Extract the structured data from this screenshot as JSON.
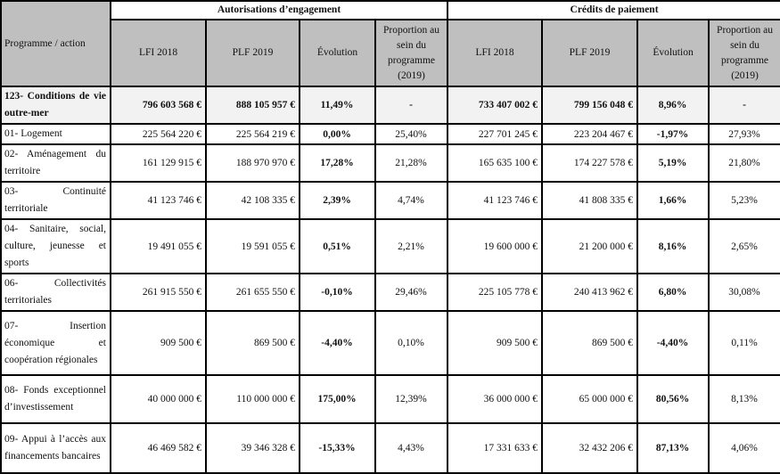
{
  "header": {
    "programme_label": "Programme / action",
    "group_ae": "Autorisations d’engagement",
    "group_cp": "Crédits de paiement",
    "cols": [
      "LFI 2018",
      "PLF 2019",
      "Évolution",
      "Proportion au sein du programme (2019)"
    ]
  },
  "rows": [
    {
      "name": "123- Conditions de vie outre-mer",
      "ae_lfi": "796 603 568 €",
      "ae_plf": "888 105 957 €",
      "ae_ev": "11,49%",
      "ae_pr": "-",
      "cp_lfi": "733 407 002 €",
      "cp_plf": "799 156 048 €",
      "cp_ev": "8,96%",
      "cp_pr": "-"
    },
    {
      "name": "01- Logement",
      "ae_lfi": "225 564 220 €",
      "ae_plf": "225 564 219 €",
      "ae_ev": "0,00%",
      "ae_pr": "25,40%",
      "cp_lfi": "227 701 245 €",
      "cp_plf": "223 204 467 €",
      "cp_ev": "-1,97%",
      "cp_pr": "27,93%"
    },
    {
      "name": "02- Aménagement du territoire",
      "ae_lfi": "161 129 915 €",
      "ae_plf": "188 970 970 €",
      "ae_ev": "17,28%",
      "ae_pr": "21,28%",
      "cp_lfi": "165 635 100 €",
      "cp_plf": "174 227 578 €",
      "cp_ev": "5,19%",
      "cp_pr": "21,80%"
    },
    {
      "name": "03- Continuité territoriale",
      "ae_lfi": "41 123 746 €",
      "ae_plf": "42 108 335 €",
      "ae_ev": "2,39%",
      "ae_pr": "4,74%",
      "cp_lfi": "41 123 746 €",
      "cp_plf": "41 808 335 €",
      "cp_ev": "1,66%",
      "cp_pr": "5,23%"
    },
    {
      "name": "04- Sanitaire, social, culture, jeunesse et sports",
      "ae_lfi": "19 491 055 €",
      "ae_plf": "19 591 055 €",
      "ae_ev": "0,51%",
      "ae_pr": "2,21%",
      "cp_lfi": "19 600 000 €",
      "cp_plf": "21 200 000 €",
      "cp_ev": "8,16%",
      "cp_pr": "2,65%"
    },
    {
      "name": "06- Collectivités territoriales",
      "ae_lfi": "261 915 550 €",
      "ae_plf": "261 655 550 €",
      "ae_ev": "-0,10%",
      "ae_pr": "29,46%",
      "cp_lfi": "225 105 778 €",
      "cp_plf": "240 413 962 €",
      "cp_ev": "6,80%",
      "cp_pr": "30,08%"
    },
    {
      "name": "07- Insertion économique et coopération régionales",
      "ae_lfi": "909 500 €",
      "ae_plf": "869 500 €",
      "ae_ev": "-4,40%",
      "ae_pr": "0,10%",
      "cp_lfi": "909 500 €",
      "cp_plf": "869 500 €",
      "cp_ev": "-4,40%",
      "cp_pr": "0,11%"
    },
    {
      "name": "08- Fonds exceptionnel d’investissement",
      "ae_lfi": "40 000 000 €",
      "ae_plf": "110 000 000 €",
      "ae_ev": "175,00%",
      "ae_pr": "12,39%",
      "cp_lfi": "36 000 000 €",
      "cp_plf": "65 000 000 €",
      "cp_ev": "80,56%",
      "cp_pr": "8,13%"
    },
    {
      "name": "09- Appui à l’accès aux financements bancaires",
      "ae_lfi": "46 469 582 €",
      "ae_plf": "39 346 328 €",
      "ae_ev": "-15,33%",
      "ae_pr": "4,43%",
      "cp_lfi": "17 331 633 €",
      "cp_plf": "32 432 206 €",
      "cp_ev": "87,13%",
      "cp_pr": "4,06%"
    }
  ]
}
